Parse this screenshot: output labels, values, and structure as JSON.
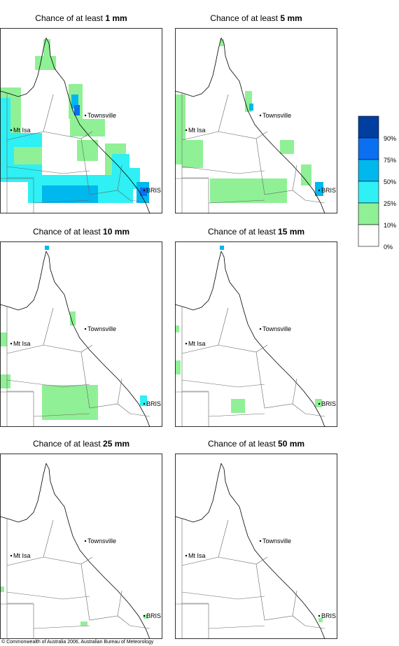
{
  "panels": [
    {
      "prefix": "Chance of at least",
      "amount": "1 mm"
    },
    {
      "prefix": "Chance of at least",
      "amount": "5 mm"
    },
    {
      "prefix": "Chance of at least",
      "amount": "10 mm"
    },
    {
      "prefix": "Chance of at least",
      "amount": "15 mm"
    },
    {
      "prefix": "Chance of at least",
      "amount": "25 mm"
    },
    {
      "prefix": "Chance of at least",
      "amount": "50 mm"
    }
  ],
  "places": [
    "Townsville",
    "Mt Isa",
    "BRIS"
  ],
  "legend": [
    {
      "label": "90%",
      "color": "#003f9f"
    },
    {
      "label": "75%",
      "color": "#0a6ff0"
    },
    {
      "label": "50%",
      "color": "#00b8ee"
    },
    {
      "label": "25%",
      "color": "#2ef0f5"
    },
    {
      "label": "10%",
      "color": "#90f096"
    },
    {
      "label": "0%",
      "color": "#ffffff"
    }
  ],
  "copyright": "© Commonwealth of Australia 2006, Australian Bureau of Meteorology"
}
